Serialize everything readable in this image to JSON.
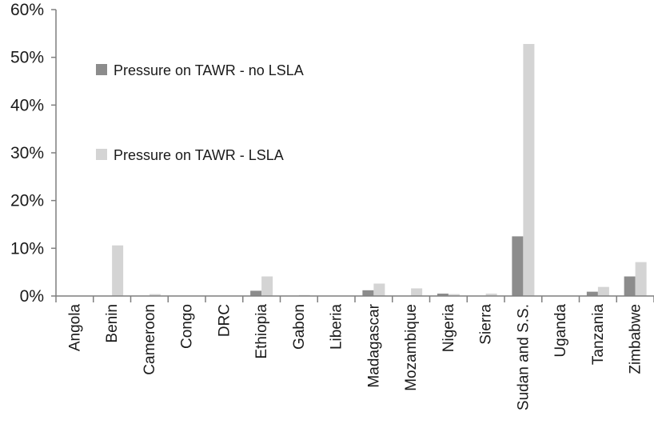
{
  "chart_data": {
    "type": "bar",
    "categories": [
      "Angola",
      "Benin",
      "Cameroon",
      "Congo",
      "DRC",
      "Ethiopia",
      "Gabon",
      "Liberia",
      "Madagascar",
      "Mozambique",
      "Nigeria",
      "Sierra",
      "Sudan and S.S.",
      "Uganda",
      "Tanzania",
      "Zimbabwe"
    ],
    "series": [
      {
        "name": "Pressure on TAWR - no LSLA",
        "color": "#8c8c8c",
        "values": [
          0,
          0,
          0,
          0,
          0,
          1.1,
          0,
          0,
          1.2,
          0,
          0.5,
          0,
          12.5,
          0,
          0.9,
          4.1
        ]
      },
      {
        "name": "Pressure on TAWR - LSLA",
        "color": "#d4d4d4",
        "values": [
          0,
          10.6,
          0.4,
          0,
          0,
          4.1,
          0.2,
          0,
          2.6,
          1.6,
          0.4,
          0.5,
          52.8,
          0,
          1.9,
          7.1
        ]
      }
    ],
    "yticks": [
      "0%",
      "10%",
      "20%",
      "30%",
      "40%",
      "50%",
      "60%"
    ],
    "ylim": [
      0,
      60
    ],
    "xlabel": "",
    "ylabel": "",
    "title": "",
    "grid": false,
    "legend": "inside-top-left"
  }
}
